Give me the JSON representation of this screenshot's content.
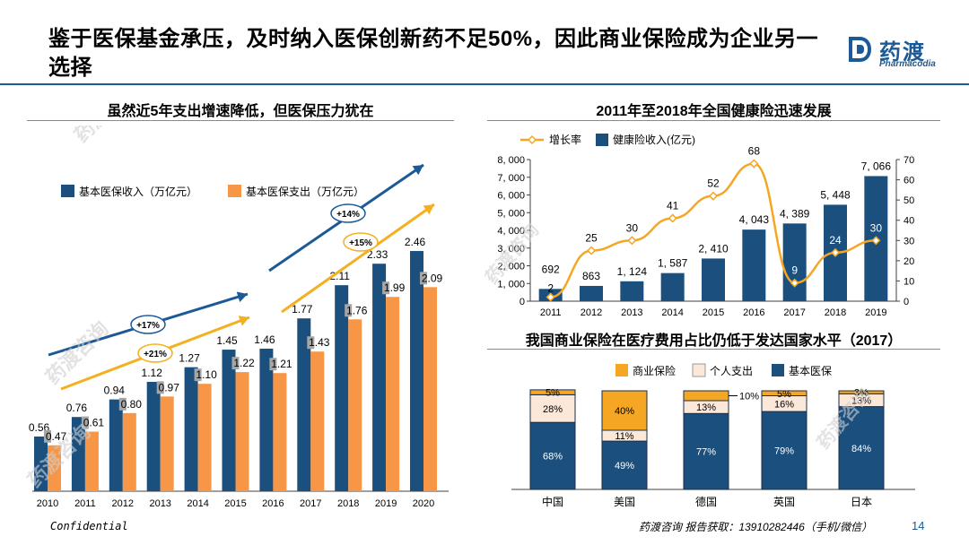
{
  "header": {
    "title": "鉴于医保基金承压，及时纳入医保创新药不足50%，因此商业保险成为企业另一选择",
    "logo_cn": "药渡",
    "logo_en": "Pharmacodia"
  },
  "footer": {
    "left": "Confidential",
    "right": "药渡咨询 报告获取：13910282446（手机/微信）",
    "page": "14"
  },
  "watermark": "药渡咨询",
  "colors": {
    "navy": "#1b4f7e",
    "orange": "#f79646",
    "gold": "#f5a623",
    "beige": "#fbe8d8",
    "accent": "#1b5a96"
  },
  "chart_data": [
    {
      "type": "bar",
      "title": "虽然近5年支出增速降低，但医保压力犹在",
      "categories": [
        "2010",
        "2011",
        "2012",
        "2013",
        "2014",
        "2015",
        "2016",
        "2017",
        "2018",
        "2019",
        "2020"
      ],
      "series": [
        {
          "name": "基本医保收入（万亿元）",
          "values": [
            0.56,
            0.76,
            0.94,
            1.12,
            1.27,
            1.45,
            1.46,
            1.77,
            2.11,
            2.33,
            2.46
          ],
          "labels": [
            "0.56",
            "0.76",
            "0.94",
            "1.12",
            "1.27",
            "1.45",
            "1.46",
            "1.77",
            "2.11",
            "2.33",
            "2.46"
          ]
        },
        {
          "name": "基本医保支出（万亿元）",
          "values": [
            0.47,
            0.61,
            0.8,
            0.97,
            1.1,
            1.22,
            1.21,
            1.43,
            1.76,
            1.99,
            2.09
          ],
          "labels": [
            "0.47",
            "0.61",
            "0.80",
            "0.97",
            "1.10",
            "1.22",
            "1.21",
            "1.43",
            "1.76",
            "1.99",
            "2.09"
          ]
        }
      ],
      "ylim": [
        0,
        3.4
      ],
      "annotations": [
        "+17%",
        "+21%",
        "+14%",
        "+15%"
      ],
      "legend": "top-left"
    },
    {
      "type": "bar",
      "title": "2011年至2018年全国健康险迅速发展",
      "categories": [
        "2011",
        "2012",
        "2013",
        "2014",
        "2015",
        "2016",
        "2017",
        "2018",
        "2019"
      ],
      "series": [
        {
          "name": "健康险收入(亿元)",
          "values": [
            692,
            863,
            1124,
            1587,
            2410,
            4043,
            4389,
            5448,
            7066
          ],
          "labels": [
            "692",
            "863",
            "1, 124",
            "1, 587",
            "2, 410",
            "4, 043",
            "4, 389",
            "5, 448",
            "7, 066"
          ]
        },
        {
          "name": "增长率",
          "type": "line",
          "axis": "right",
          "values": [
            2,
            25,
            30,
            41,
            52,
            68,
            9,
            24,
            30
          ],
          "labels": [
            "2",
            "25",
            "30",
            "41",
            "52",
            "68",
            "9",
            "24",
            "30"
          ]
        }
      ],
      "ylim": [
        0,
        8000
      ],
      "y2lim": [
        0,
        70
      ],
      "yticks": [
        "0",
        "1, 000",
        "2, 000",
        "3, 000",
        "4, 000",
        "5, 000",
        "6, 000",
        "7, 000",
        "8, 000"
      ],
      "y2ticks": [
        "0",
        "10",
        "20",
        "30",
        "40",
        "50",
        "60",
        "70"
      ],
      "legend": "top-left"
    },
    {
      "type": "bar",
      "stacked": true,
      "title": "我国商业保险在医疗费用占比仍低于发达国家水平（2017）",
      "categories": [
        "中国",
        "美国",
        "德国",
        "英国",
        "日本"
      ],
      "series": [
        {
          "name": "基本医保",
          "values": [
            68,
            49,
            77,
            79,
            84
          ]
        },
        {
          "name": "个人支出",
          "values": [
            28,
            11,
            13,
            16,
            13
          ]
        },
        {
          "name": "商业保险",
          "values": [
            5,
            40,
            10,
            5,
            3
          ]
        }
      ],
      "labels": {
        "基本医保": [
          "68%",
          "49%",
          "77%",
          "79%",
          "84%"
        ],
        "个人支出": [
          "28%",
          "11%",
          "13%",
          "16%",
          "13%"
        ],
        "商业保险": [
          "5%",
          "40%",
          "10%",
          "5%",
          "3%"
        ]
      },
      "ylim": [
        0,
        100
      ],
      "legend": "top"
    }
  ]
}
